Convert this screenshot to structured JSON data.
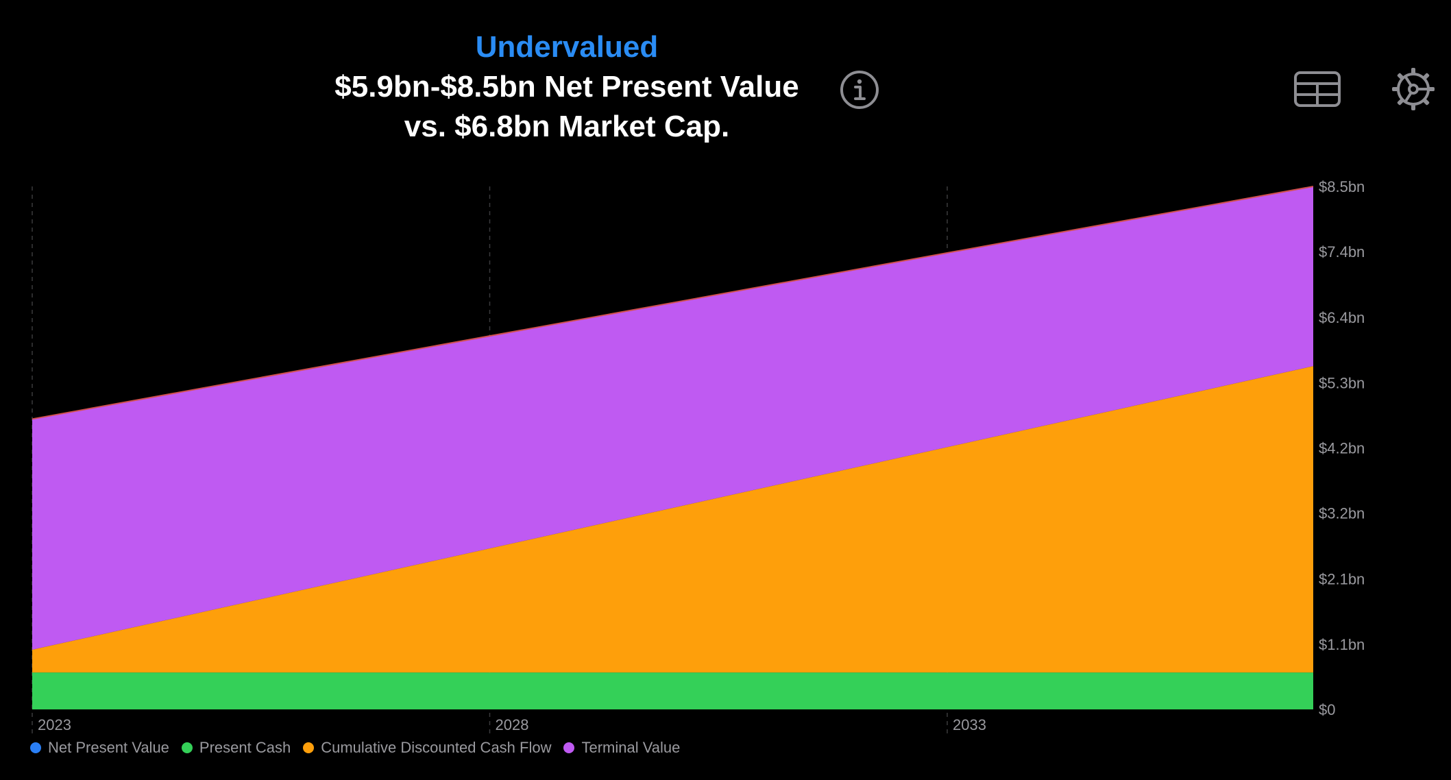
{
  "header": {
    "status": "Undervalued",
    "line1": "$5.9bn-$8.5bn Net Present Value",
    "line2": "vs. $6.8bn Market Cap."
  },
  "toolbar": {
    "info_icon": "info-icon",
    "table_icon": "table-icon",
    "settings_icon": "settings-gear-icon"
  },
  "colors": {
    "status": "#2a8cf4",
    "net_present_value": "#2a7ff5",
    "present_cash": "#34d058",
    "cumulative_dcf": "#fe9f0b",
    "terminal_value": "#bf5af2",
    "top_line": "#d0504f",
    "axis_text": "#9a9a9f",
    "grid": "#3a3a3c"
  },
  "chart_data": {
    "type": "area",
    "title": "$5.9bn-$8.5bn Net Present Value vs. $6.8bn Market Cap.",
    "x": [
      2023,
      2037
    ],
    "x_ticks": [
      "2023",
      "2028",
      "2033"
    ],
    "x_tick_values": [
      2023,
      2028,
      2033
    ],
    "xlim": [
      2023,
      2037
    ],
    "ylim": [
      0,
      8.5
    ],
    "y_ticks": [
      "$0",
      "$1.1bn",
      "$2.1bn",
      "$3.2bn",
      "$4.2bn",
      "$5.3bn",
      "$6.4bn",
      "$7.4bn",
      "$8.5bn"
    ],
    "y_tick_values": [
      0,
      1.06,
      2.12,
      3.19,
      4.25,
      5.31,
      6.37,
      7.44,
      8.5
    ],
    "y_axis_position": "right",
    "series": [
      {
        "name": "Present Cash",
        "values": [
          0.6,
          0.6
        ]
      },
      {
        "name": "Cumulative Discounted Cash Flow",
        "values": [
          0.37,
          4.98
        ]
      },
      {
        "name": "Terminal Value",
        "values": [
          3.75,
          2.92
        ]
      },
      {
        "name": "Net Present Value",
        "values": [
          4.72,
          8.5
        ]
      }
    ],
    "legend": [
      "Net Present Value",
      "Present Cash",
      "Cumulative Discounted Cash Flow",
      "Terminal Value"
    ],
    "legend_position": "bottom-left"
  }
}
